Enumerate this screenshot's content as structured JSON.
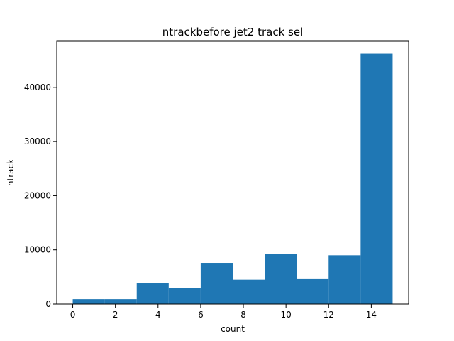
{
  "chart_data": {
    "type": "bar",
    "title": "ntrackbefore jet2 track sel",
    "xlabel": "count",
    "ylabel": "ntrack",
    "xlim": [
      -0.75,
      15.75
    ],
    "ylim": [
      0,
      48500
    ],
    "x_ticks": [
      0,
      2,
      4,
      6,
      8,
      10,
      12,
      14
    ],
    "y_ticks": [
      0,
      10000,
      20000,
      30000,
      40000
    ],
    "bin_edges": [
      0,
      1.5,
      3,
      4.5,
      6,
      7.5,
      9,
      10.5,
      12,
      13.5,
      15
    ],
    "values": [
      900,
      900,
      3800,
      2900,
      7600,
      4500,
      9300,
      4600,
      9000,
      46200
    ],
    "bar_color": "#1f77b4",
    "grid": false,
    "legend": "none"
  }
}
